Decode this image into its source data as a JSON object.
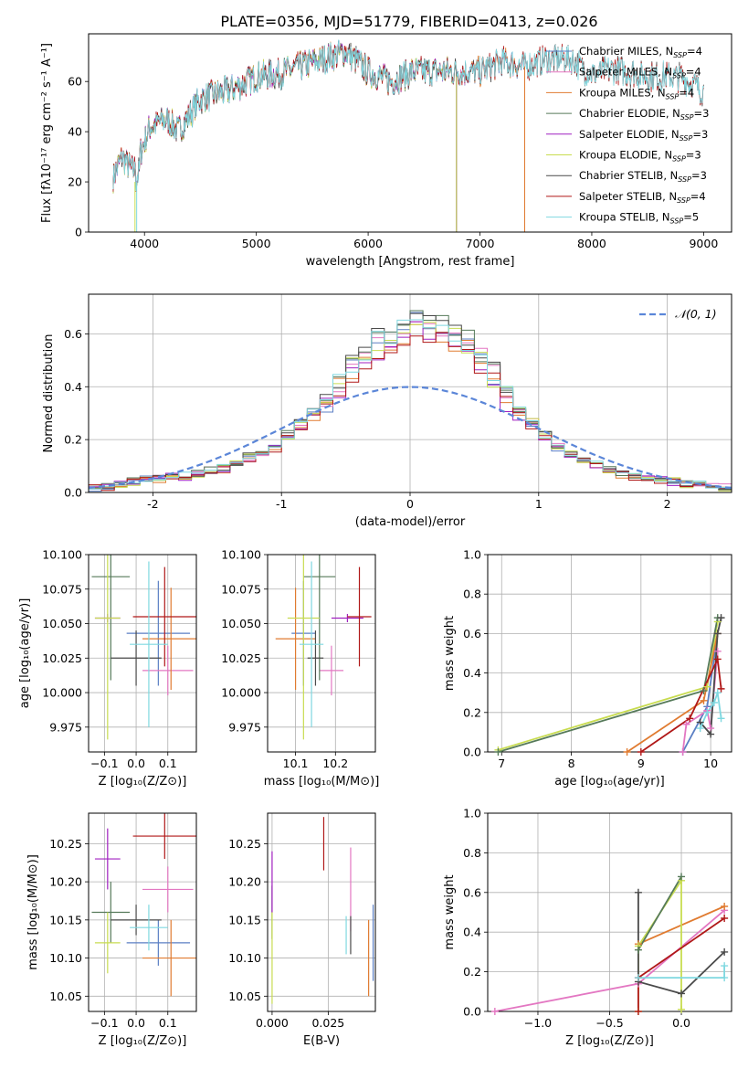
{
  "figure_title": "PLATE=0356, MJD=51779, FIBERID=0413, z=0.026",
  "models": [
    {
      "name": "Chabrier MILES",
      "nssp": "4",
      "color": "#5b7fc4"
    },
    {
      "name": "Salpeter MILES",
      "nssp": "4",
      "color": "#e377c2"
    },
    {
      "name": "Kroupa MILES",
      "nssp": "4",
      "color": "#e07b30"
    },
    {
      "name": "Chabrier ELODIE",
      "nssp": "3",
      "color": "#567a5a"
    },
    {
      "name": "Salpeter ELODIE",
      "nssp": "3",
      "color": "#a020c0"
    },
    {
      "name": "Kroupa ELODIE",
      "nssp": "3",
      "color": "#c8dc50"
    },
    {
      "name": "Chabrier STELIB",
      "nssp": "3",
      "color": "#4a4a4a"
    },
    {
      "name": "Salpeter STELIB",
      "nssp": "4",
      "color": "#b01818"
    },
    {
      "name": "Kroupa STELIB",
      "nssp": "5",
      "color": "#7fd8e0"
    }
  ],
  "chart_data": [
    {
      "type": "line",
      "id": "spectrum",
      "xlabel": "wavelength [Angstrom, rest frame]",
      "ylabel": "Flux [fλ10⁻¹⁷ erg cm⁻² s⁻¹ A⁻¹]",
      "xlim": [
        3500,
        9250
      ],
      "ylim": [
        0,
        79
      ],
      "xticks": [
        4000,
        5000,
        6000,
        7000,
        8000,
        9000
      ],
      "yticks": [
        0,
        20,
        40,
        60
      ],
      "legend": "top-right",
      "spectrum_envelope": {
        "x": [
          3720,
          3800,
          3900,
          3950,
          4050,
          4200,
          4300,
          4500,
          4800,
          5000,
          5200,
          5400,
          5600,
          5800,
          6000,
          6200,
          6400,
          6600,
          6800,
          7000,
          7200,
          7400,
          7600,
          7800,
          8000,
          8200,
          8500,
          8800,
          9000
        ],
        "y": [
          22,
          30,
          24,
          30,
          42,
          45,
          40,
          53,
          57,
          62,
          63,
          66,
          69,
          72,
          64,
          60,
          64,
          64,
          64,
          64,
          68,
          66,
          69,
          69,
          63,
          65,
          62,
          62,
          56
        ]
      },
      "model_ranges": [
        {
          "model": "Chabrier MILES",
          "x_end": 7400
        },
        {
          "model": "Salpeter MILES",
          "x_end": 7400
        },
        {
          "model": "Kroupa MILES",
          "x_end": 7400
        },
        {
          "model": "Chabrier ELODIE",
          "x_end": 6790
        },
        {
          "model": "Salpeter ELODIE",
          "x_end": 6790
        },
        {
          "model": "Kroupa ELODIE",
          "x_end": 6790
        },
        {
          "model": "Chabrier STELIB",
          "x_end": 9000
        },
        {
          "model": "Salpeter STELIB",
          "x_end": 9000
        },
        {
          "model": "Kroupa STELIB",
          "x_end": 9000
        }
      ]
    },
    {
      "type": "histogram",
      "id": "residuals",
      "xlabel": "(data-model)/error",
      "ylabel": "Normed distribution",
      "xlim": [
        -2.5,
        2.5
      ],
      "ylim": [
        0,
        0.75
      ],
      "xticks": [
        -2,
        -1,
        0,
        1,
        2
      ],
      "yticks": [
        0.0,
        0.2,
        0.4,
        0.6
      ],
      "legend": "top-right",
      "legend_label": "𝒩(0, 1)",
      "bin_width": 0.1,
      "bin_start": -2.5,
      "base_heights": [
        0.02,
        0.02,
        0.03,
        0.04,
        0.05,
        0.05,
        0.06,
        0.06,
        0.07,
        0.08,
        0.09,
        0.11,
        0.13,
        0.15,
        0.17,
        0.21,
        0.25,
        0.29,
        0.33,
        0.4,
        0.47,
        0.52,
        0.55,
        0.57,
        0.6,
        0.65,
        0.62,
        0.6,
        0.58,
        0.55,
        0.5,
        0.43,
        0.36,
        0.3,
        0.26,
        0.21,
        0.17,
        0.14,
        0.12,
        0.1,
        0.08,
        0.07,
        0.06,
        0.05,
        0.05,
        0.04,
        0.03,
        0.03,
        0.02,
        0.02
      ],
      "normal_curve": {
        "mu": 0,
        "sigma": 1
      }
    },
    {
      "type": "errorbar",
      "id": "age_vs_Z",
      "xlabel": "Z [log₁₀(Z/Z⊙)]",
      "ylabel": "age  [log₁₀(age/yr)]",
      "xlim": [
        -0.15,
        0.19
      ],
      "ylim": [
        9.957,
        10.1
      ],
      "xticks": [
        -0.1,
        0.0,
        0.1
      ],
      "xticklabels": [
        "−0.1",
        "0.0",
        "0.1"
      ],
      "yticks": [
        9.975,
        10.0,
        10.025,
        10.05,
        10.075,
        10.1
      ],
      "points": [
        {
          "model": "Chabrier MILES",
          "x": 0.07,
          "xerr": 0.1,
          "y": 10.043,
          "yerr": 0.038
        },
        {
          "model": "Salpeter MILES",
          "x": 0.1,
          "xerr": 0.08,
          "y": 10.016,
          "yerr": 0.018
        },
        {
          "model": "Kroupa MILES",
          "x": 0.11,
          "xerr": 0.09,
          "y": 10.039,
          "yerr": 0.037
        },
        {
          "model": "Chabrier ELODIE",
          "x": -0.08,
          "xerr": 0.06,
          "y": 10.084,
          "yerr": 0.075
        },
        {
          "model": "Salpeter ELODIE",
          "x": -0.09,
          "xerr": 0.04,
          "y": 10.054,
          "yerr": 0.003
        },
        {
          "model": "Kroupa ELODIE",
          "x": -0.09,
          "xerr": 0.04,
          "y": 10.054,
          "yerr": 0.088
        },
        {
          "model": "Chabrier STELIB",
          "x": 0.0,
          "xerr": 0.08,
          "y": 10.025,
          "yerr": 0.02
        },
        {
          "model": "Salpeter STELIB",
          "x": 0.09,
          "xerr": 0.1,
          "y": 10.055,
          "yerr": 0.036
        },
        {
          "model": "Kroupa STELIB",
          "x": 0.04,
          "xerr": 0.06,
          "y": 10.035,
          "yerr": 0.06
        }
      ]
    },
    {
      "type": "errorbar",
      "id": "age_vs_mass",
      "xlabel": "mass [log₁₀(M/M⊙)]",
      "ylabel": "",
      "xlim": [
        10.03,
        10.3
      ],
      "ylim": [
        9.957,
        10.1
      ],
      "xticks": [
        10.1,
        10.2
      ],
      "xticklabels": [
        "10.1",
        "10.2"
      ],
      "yticks": [
        9.975,
        10.0,
        10.025,
        10.05,
        10.075,
        10.1
      ],
      "points": [
        {
          "model": "Chabrier MILES",
          "x": 10.12,
          "xerr": 0.03,
          "y": 10.043,
          "yerr": 0.038
        },
        {
          "model": "Salpeter MILES",
          "x": 10.19,
          "xerr": 0.03,
          "y": 10.016,
          "yerr": 0.018
        },
        {
          "model": "Kroupa MILES",
          "x": 10.1,
          "xerr": 0.05,
          "y": 10.039,
          "yerr": 0.037
        },
        {
          "model": "Chabrier ELODIE",
          "x": 10.16,
          "xerr": 0.04,
          "y": 10.084,
          "yerr": 0.075
        },
        {
          "model": "Salpeter ELODIE",
          "x": 10.23,
          "xerr": 0.04,
          "y": 10.054,
          "yerr": 0.003
        },
        {
          "model": "Kroupa ELODIE",
          "x": 10.12,
          "xerr": 0.04,
          "y": 10.054,
          "yerr": 0.088
        },
        {
          "model": "Chabrier STELIB",
          "x": 10.15,
          "xerr": 0.02,
          "y": 10.025,
          "yerr": 0.02
        },
        {
          "model": "Salpeter STELIB",
          "x": 10.26,
          "xerr": 0.03,
          "y": 10.055,
          "yerr": 0.036
        },
        {
          "model": "Kroupa STELIB",
          "x": 10.14,
          "xerr": 0.03,
          "y": 10.035,
          "yerr": 0.06
        }
      ]
    },
    {
      "type": "errorbar",
      "id": "mass_vs_Z",
      "xlabel": "Z [log₁₀(Z/Z⊙)]",
      "ylabel": "mass [log₁₀(M/M⊙)]",
      "xlim": [
        -0.15,
        0.19
      ],
      "ylim": [
        10.03,
        10.29
      ],
      "xticks": [
        -0.1,
        0.0,
        0.1
      ],
      "xticklabels": [
        "−0.1",
        "0.0",
        "0.1"
      ],
      "yticks": [
        10.05,
        10.1,
        10.15,
        10.2,
        10.25
      ],
      "points": [
        {
          "model": "Chabrier MILES",
          "x": 0.07,
          "xerr": 0.1,
          "y": 10.12,
          "yerr": 0.03
        },
        {
          "model": "Salpeter MILES",
          "x": 0.1,
          "xerr": 0.08,
          "y": 10.19,
          "yerr": 0.03
        },
        {
          "model": "Kroupa MILES",
          "x": 0.11,
          "xerr": 0.09,
          "y": 10.1,
          "yerr": 0.05
        },
        {
          "model": "Chabrier ELODIE",
          "x": -0.08,
          "xerr": 0.06,
          "y": 10.16,
          "yerr": 0.04
        },
        {
          "model": "Salpeter ELODIE",
          "x": -0.09,
          "xerr": 0.04,
          "y": 10.23,
          "yerr": 0.04
        },
        {
          "model": "Kroupa ELODIE",
          "x": -0.09,
          "xerr": 0.04,
          "y": 10.12,
          "yerr": 0.04
        },
        {
          "model": "Chabrier STELIB",
          "x": 0.0,
          "xerr": 0.08,
          "y": 10.15,
          "yerr": 0.02
        },
        {
          "model": "Salpeter STELIB",
          "x": 0.09,
          "xerr": 0.1,
          "y": 10.26,
          "yerr": 0.03
        },
        {
          "model": "Kroupa STELIB",
          "x": 0.04,
          "xerr": 0.06,
          "y": 10.14,
          "yerr": 0.03
        }
      ]
    },
    {
      "type": "errorbar",
      "id": "mass_vs_EBV",
      "xlabel": "E(B-V)",
      "ylabel": "",
      "xlim": [
        -0.002,
        0.046
      ],
      "ylim": [
        10.03,
        10.29
      ],
      "xticks": [
        0.0,
        0.025
      ],
      "xticklabels": [
        "0.000",
        "0.025"
      ],
      "yticks": [
        10.05,
        10.1,
        10.15,
        10.2,
        10.25
      ],
      "points": [
        {
          "model": "Chabrier MILES",
          "x": 0.045,
          "xerr": 0,
          "y": 10.12,
          "yerr": 0.05
        },
        {
          "model": "Salpeter MILES",
          "x": 0.035,
          "xerr": 0,
          "y": 10.19,
          "yerr": 0.055
        },
        {
          "model": "Kroupa MILES",
          "x": 0.043,
          "xerr": 0,
          "y": 10.1,
          "yerr": 0.05
        },
        {
          "model": "Chabrier ELODIE",
          "x": 0.0,
          "xerr": 0,
          "y": 10.16,
          "yerr": 0.035
        },
        {
          "model": "Salpeter ELODIE",
          "x": 0.0,
          "xerr": 0,
          "y": 10.2,
          "yerr": 0.04
        },
        {
          "model": "Kroupa ELODIE",
          "x": 0.0,
          "xerr": 0,
          "y": 10.1,
          "yerr": 0.06
        },
        {
          "model": "Chabrier STELIB",
          "x": 0.035,
          "xerr": 0,
          "y": 10.13,
          "yerr": 0.025
        },
        {
          "model": "Salpeter STELIB",
          "x": 0.023,
          "xerr": 0,
          "y": 10.25,
          "yerr": 0.035
        },
        {
          "model": "Kroupa STELIB",
          "x": 0.033,
          "xerr": 0,
          "y": 10.13,
          "yerr": 0.025
        }
      ]
    },
    {
      "type": "line",
      "id": "weight_vs_age",
      "xlabel": "age  [log₁₀(age/yr)]",
      "ylabel": "mass weight",
      "xlim": [
        6.8,
        10.3
      ],
      "ylim": [
        0,
        1.0
      ],
      "xticks": [
        7,
        8,
        9,
        10
      ],
      "yticks": [
        0.0,
        0.2,
        0.4,
        0.6,
        0.8,
        1.0
      ],
      "series": [
        {
          "model": "Kroupa ELODIE",
          "x": [
            6.95,
            9.95,
            10.1
          ],
          "y": [
            0.01,
            0.33,
            0.66
          ]
        },
        {
          "model": "Chabrier ELODIE",
          "x": [
            6.95,
            9.9,
            10.1
          ],
          "y": [
            0.0,
            0.31,
            0.68
          ]
        },
        {
          "model": "Chabrier MILES",
          "x": [
            9.6,
            9.95,
            10.1
          ],
          "y": [
            0.0,
            0.23,
            0.6
          ]
        },
        {
          "model": "Kroupa MILES",
          "x": [
            8.8,
            9.9,
            10.1
          ],
          "y": [
            0.0,
            0.26,
            0.6
          ]
        },
        {
          "model": "Salpeter MILES",
          "x": [
            9.6,
            9.65,
            9.95,
            10.0,
            10.1
          ],
          "y": [
            0.0,
            0.14,
            0.21,
            0.12,
            0.51
          ]
        },
        {
          "model": "Chabrier STELIB",
          "x": [
            9.85,
            10.0,
            10.1,
            10.15
          ],
          "y": [
            0.15,
            0.09,
            0.6,
            0.68
          ]
        },
        {
          "model": "Salpeter STELIB",
          "x": [
            9.0,
            9.7,
            10.1,
            10.15
          ],
          "y": [
            0.0,
            0.17,
            0.47,
            0.32
          ]
        },
        {
          "model": "Kroupa STELIB",
          "x": [
            9.85,
            9.95,
            10.05,
            10.1,
            10.15
          ],
          "y": [
            0.12,
            0.2,
            0.25,
            0.3,
            0.17
          ]
        }
      ]
    },
    {
      "type": "line",
      "id": "weight_vs_Z",
      "xlabel": "Z [log₁₀(Z/Z⊙)]",
      "ylabel": "mass weight",
      "xlim": [
        -1.35,
        0.35
      ],
      "ylim": [
        0,
        1.0
      ],
      "xticks": [
        -1.0,
        -0.5,
        0.0
      ],
      "xticklabels": [
        "−1.0",
        "−0.5",
        "0.0"
      ],
      "yticks": [
        0.0,
        0.2,
        0.4,
        0.6,
        0.8,
        1.0
      ],
      "series": [
        {
          "model": "Salpeter MILES",
          "x": [
            -1.3,
            -0.3,
            0.3
          ],
          "y": [
            0.0,
            0.14,
            0.51
          ]
        },
        {
          "model": "Kroupa MILES",
          "x": [
            -0.3,
            0.3
          ],
          "y": [
            0.34,
            0.53
          ]
        },
        {
          "model": "Kroupa ELODIE",
          "x": [
            -0.3,
            -0.3,
            0.0,
            0.0
          ],
          "y": [
            0.0,
            0.33,
            0.66,
            0.01
          ]
        },
        {
          "model": "Chabrier ELODIE",
          "x": [
            -0.3,
            0.0
          ],
          "y": [
            0.31,
            0.68
          ]
        },
        {
          "model": "Chabrier STELIB",
          "x": [
            -0.3,
            -0.3,
            0.0,
            0.3
          ],
          "y": [
            0.6,
            0.15,
            0.09,
            0.3
          ]
        },
        {
          "model": "Salpeter STELIB",
          "x": [
            -0.3,
            -0.3,
            0.3
          ],
          "y": [
            0.0,
            0.17,
            0.47
          ]
        },
        {
          "model": "Kroupa STELIB",
          "x": [
            -0.3,
            0.3,
            0.3
          ],
          "y": [
            0.17,
            0.17,
            0.23
          ]
        }
      ]
    }
  ]
}
